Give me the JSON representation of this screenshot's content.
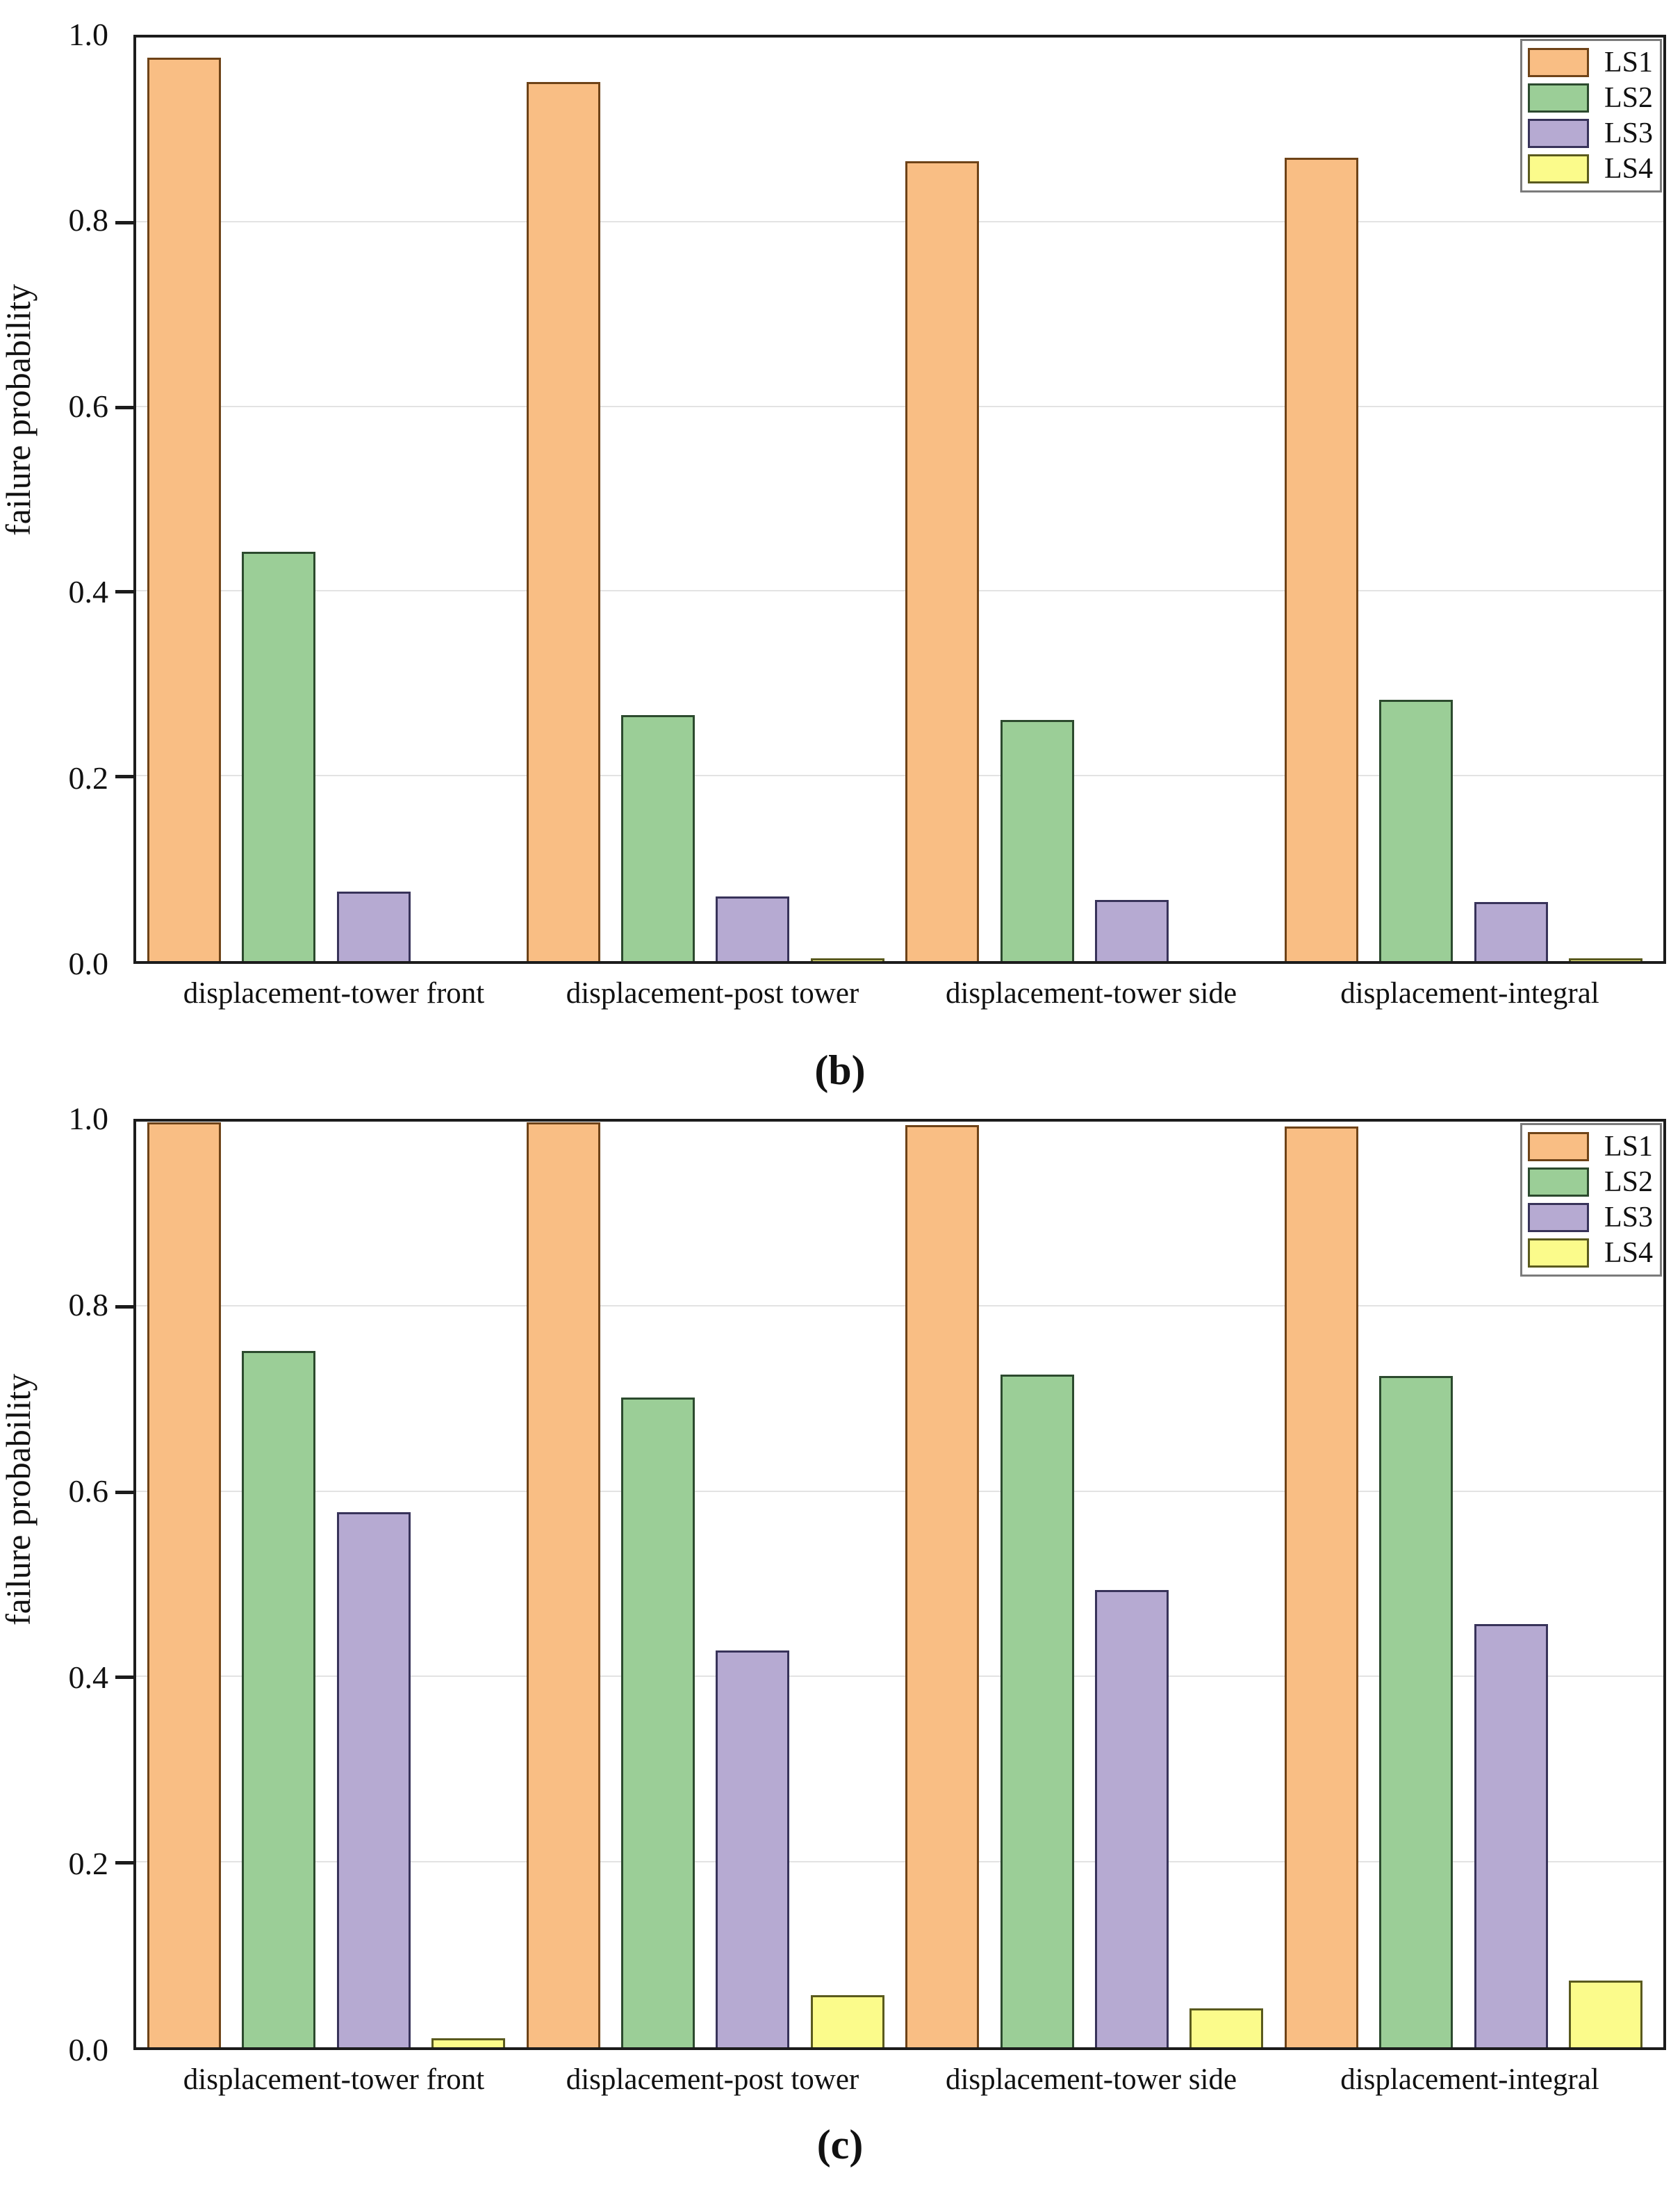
{
  "figure": {
    "background": "#ffffff",
    "axis_color": "#1c1c1c",
    "gridline_color": "#e3e3e3"
  },
  "chart_data": [
    {
      "type": "bar",
      "caption": "(b)",
      "ylabel": "failure probability",
      "ylim": [
        0.0,
        1.0
      ],
      "yticks": [
        "0.0",
        "0.2",
        "0.4",
        "0.6",
        "0.8",
        "1.0"
      ],
      "grid": "horizontal, at 0.2 intervals",
      "legend_position": "top-right",
      "categories": [
        "displacement-tower front",
        "displacement-post tower",
        "displacement-tower side",
        "displacement-integral"
      ],
      "series": [
        {
          "name": "LS1",
          "fill": "#f9be84",
          "edge": "#6e4318",
          "values": [
            0.978,
            0.952,
            0.866,
            0.87
          ]
        },
        {
          "name": "LS2",
          "fill": "#9bce97",
          "edge": "#2c4a2e",
          "values": [
            0.443,
            0.266,
            0.261,
            0.283
          ]
        },
        {
          "name": "LS3",
          "fill": "#b6aad2",
          "edge": "#38335a",
          "values": [
            0.075,
            0.07,
            0.066,
            0.064
          ]
        },
        {
          "name": "LS4",
          "fill": "#fbfb8b",
          "edge": "#5a5a1e",
          "values": [
            0.0,
            0.003,
            0.0,
            0.003
          ]
        }
      ]
    },
    {
      "type": "bar",
      "caption": "(c)",
      "ylabel": "failure probability",
      "ylim": [
        0.0,
        1.0
      ],
      "yticks": [
        "0.0",
        "0.2",
        "0.4",
        "0.6",
        "0.8",
        "1.0"
      ],
      "grid": "horizontal, at 0.2 intervals",
      "legend_position": "top-right",
      "categories": [
        "displacement-tower front",
        "displacement-post tower",
        "displacement-tower side",
        "displacement-integral"
      ],
      "series": [
        {
          "name": "LS1",
          "fill": "#f9be84",
          "edge": "#6e4318",
          "values": [
            0.999,
            0.999,
            0.996,
            0.995
          ]
        },
        {
          "name": "LS2",
          "fill": "#9bce97",
          "edge": "#2c4a2e",
          "values": [
            0.752,
            0.702,
            0.727,
            0.725
          ]
        },
        {
          "name": "LS3",
          "fill": "#b6aad2",
          "edge": "#38335a",
          "values": [
            0.578,
            0.429,
            0.494,
            0.457
          ]
        },
        {
          "name": "LS4",
          "fill": "#fbfb8b",
          "edge": "#5a5a1e",
          "values": [
            0.01,
            0.056,
            0.042,
            0.072
          ]
        }
      ]
    }
  ]
}
